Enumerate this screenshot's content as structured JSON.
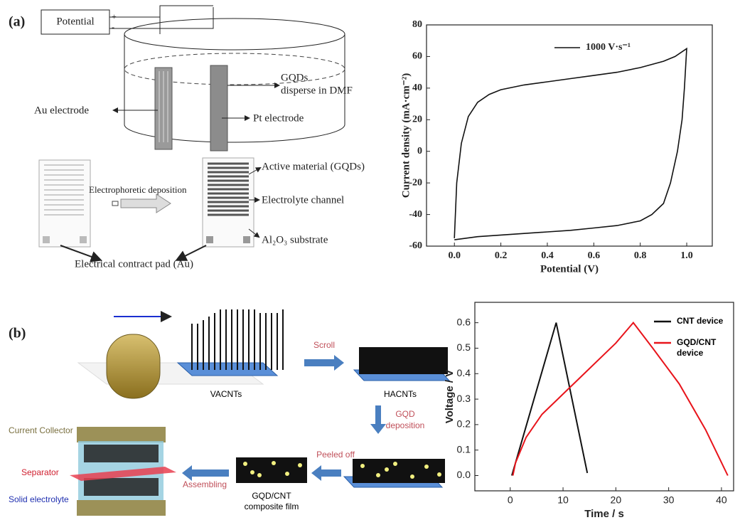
{
  "chart_data": [
    {
      "type": "line",
      "x_label": "Potential (V)",
      "y_label": "Current density (mA·cm⁻²)",
      "xlim": [
        -0.12,
        1.11
      ],
      "ylim": [
        -60,
        80
      ],
      "xticks": [
        {
          "value": 0,
          "label": "0.0"
        },
        0.2,
        0.4,
        0.6,
        0.8,
        {
          "value": 1,
          "label": "1.0"
        }
      ],
      "yticks": [
        -60,
        -40,
        -20,
        0,
        20,
        40,
        60,
        80
      ],
      "legend": "top-center",
      "series": [
        {
          "name": "1000 V·s⁻¹",
          "color": "#111111",
          "x": [
            0.0,
            0.01,
            0.03,
            0.06,
            0.1,
            0.15,
            0.2,
            0.3,
            0.4,
            0.5,
            0.6,
            0.7,
            0.8,
            0.9,
            0.95,
            1.0,
            0.99,
            0.98,
            0.96,
            0.93,
            0.9,
            0.85,
            0.8,
            0.7,
            0.6,
            0.5,
            0.4,
            0.3,
            0.2,
            0.1,
            0.0
          ],
          "values": [
            -55,
            -20,
            5,
            22,
            31,
            36,
            39,
            42,
            44,
            46,
            48,
            50,
            53,
            57,
            60,
            65,
            40,
            20,
            0,
            -20,
            -33,
            -40,
            -44,
            -47,
            -48.5,
            -50,
            -51,
            -52,
            -53,
            -54,
            -56
          ]
        }
      ]
    },
    {
      "type": "line",
      "x_label": "Time / s",
      "y_label": "Voltage / V",
      "xlim": [
        -6.7,
        42.3
      ],
      "ylim": [
        -0.06,
        0.68
      ],
      "xticks": [
        0,
        10,
        20,
        30,
        40
      ],
      "yticks": [
        {
          "value": 0,
          "label": "0.0"
        },
        0.1,
        0.2,
        0.3,
        0.4,
        0.5,
        0.6
      ],
      "legend": "top-right",
      "series": [
        {
          "name": "CNT device",
          "color": "#111111",
          "x": [
            0.3,
            8.7,
            14.6
          ],
          "values": [
            0,
            0.6,
            0.01
          ]
        },
        {
          "name": "GQD/CNT device",
          "color": "#e8141b",
          "x": [
            0.5,
            1,
            3,
            6,
            10,
            15,
            20,
            23.3,
            27,
            32,
            37,
            41.2
          ],
          "values": [
            0,
            0.05,
            0.15,
            0.24,
            0.32,
            0.42,
            0.52,
            0.6,
            0.5,
            0.36,
            0.18,
            0
          ]
        }
      ]
    }
  ],
  "diagram_a": {
    "panel": "(a)",
    "potential": "Potential",
    "plus": "+",
    "minus": "-",
    "gqds": "GQDs",
    "disperse": "disperse in DMF",
    "au": "Au electrode",
    "pt": "Pt electrode",
    "active": "Active material (GQDs)",
    "epd": "Electrophoretic deposition",
    "channel": "Electrolyte channel",
    "substrate": "Al₂O₃ substrate",
    "pad": "Electrical contract pad (Au)"
  },
  "diagram_b": {
    "panel": "(b)",
    "scroll": "Scroll",
    "vacnts": "VACNTs",
    "hacnts": "HACNTs",
    "gqd": "GQD",
    "deposition": "deposition",
    "peeled": "Peeled off",
    "film1": "GQD/CNT",
    "film2": "composite film",
    "assembling": "Assembling",
    "collector": "Current Collector",
    "separator": "Separator",
    "electrolyte": "Solid electrolyte"
  }
}
